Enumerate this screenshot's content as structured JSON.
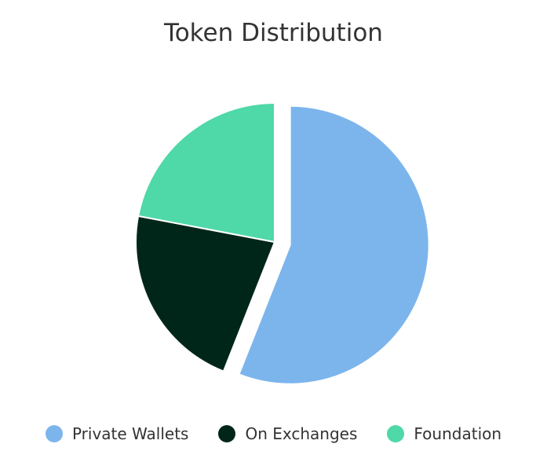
{
  "chart_data": {
    "type": "pie",
    "title": "Token Distribution",
    "categories": [
      "Private Wallets",
      "On Exchanges",
      "Foundation"
    ],
    "values": [
      56,
      22,
      22
    ],
    "colors": [
      "#7cb5ec",
      "#00261a",
      "#4fd8a8"
    ],
    "exploded": "Private Wallets",
    "legend": "bottom"
  }
}
